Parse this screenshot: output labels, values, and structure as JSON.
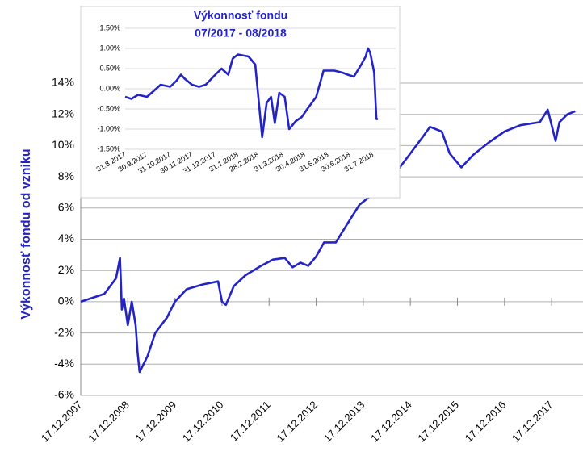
{
  "chart_data": [
    {
      "type": "line",
      "y_label": "Výkonnosť fondu od vzniku",
      "color": "#2323c8",
      "grid": true,
      "x": [
        "17.12.2007",
        "17.06.2008",
        "17.09.2008",
        "17.10.2008",
        "01.11.2008",
        "17.11.2008",
        "17.12.2008",
        "17.01.2009",
        "17.02.2009",
        "01.03.2009",
        "17.03.2009",
        "17.05.2009",
        "17.07.2009",
        "17.10.2009",
        "17.12.2009",
        "17.03.2010",
        "17.07.2010",
        "17.11.2010",
        "17.12.2010",
        "17.01.2011",
        "17.03.2011",
        "17.06.2011",
        "17.10.2011",
        "17.01.2012",
        "17.04.2012",
        "17.06.2012",
        "17.08.2012",
        "17.10.2012",
        "17.12.2012",
        "17.02.2013",
        "17.05.2013",
        "17.08.2013",
        "17.11.2013",
        "17.02.2014",
        "17.06.2014",
        "17.12.2014",
        "17.03.2015",
        "17.05.2015",
        "17.08.2015",
        "17.10.2015",
        "17.01.2016",
        "17.04.2016",
        "17.08.2016",
        "17.12.2016",
        "17.04.2017",
        "17.09.2017",
        "17.11.2017",
        "17.01.2018",
        "17.02.2018",
        "17.04.2018",
        "17.06.2018"
      ],
      "values": [
        0,
        0.5,
        1.5,
        2.8,
        -0.5,
        0.2,
        -1.5,
        0,
        -1.5,
        -3.2,
        -4.5,
        -3.5,
        -2,
        -1,
        0,
        0.8,
        1.1,
        1.3,
        0,
        -0.2,
        1,
        1.7,
        2.3,
        2.7,
        2.8,
        2.2,
        2.5,
        2.3,
        2.9,
        3.8,
        3.8,
        5,
        6.2,
        6.8,
        7.5,
        9.5,
        10.5,
        11.2,
        10.9,
        9.5,
        8.6,
        9.4,
        10.2,
        10.9,
        11.3,
        11.5,
        12.3,
        10.3,
        11.5,
        12,
        12.2
      ],
      "xticks": [
        "17.12.2007",
        "17.12.2008",
        "17.12.2009",
        "17.12.2010",
        "17.12.2011",
        "17.12.2012",
        "17.12.2013",
        "17.12.2014",
        "17.12.2015",
        "17.12.2016",
        "17.12.2017"
      ],
      "xlim": [
        "17.12.2007",
        "17.08.2018"
      ],
      "ylim": [
        -6,
        14
      ],
      "yticks": [
        {
          "value": -6,
          "label": "-6%"
        },
        {
          "value": -4,
          "label": "-4%"
        },
        {
          "value": -2,
          "label": "-2%"
        },
        {
          "value": 0,
          "label": "0%"
        },
        {
          "value": 2,
          "label": "2%"
        },
        {
          "value": 4,
          "label": "4%"
        },
        {
          "value": 6,
          "label": "6%"
        },
        {
          "value": 8,
          "label": "8%"
        },
        {
          "value": 10,
          "label": "10%"
        },
        {
          "value": 12,
          "label": "12%"
        },
        {
          "value": 14,
          "label": "14%"
        }
      ]
    },
    {
      "type": "line",
      "title": "Výkonnosť fondu",
      "subtitle": "07/2017 - 08/2018",
      "color": "#2323c8",
      "grid": true,
      "x": [
        "31.8.2017",
        "9.9.2017",
        "18.9.2017",
        "30.9.2017",
        "9.10.2017",
        "18.10.2017",
        "31.10.2017",
        "9.11.2017",
        "15.11.2017",
        "20.11.2017",
        "30.11.2017",
        "9.12.2017",
        "18.12.2017",
        "31.12.2017",
        "9.1.2018",
        "18.1.2018",
        "24.1.2018",
        "31.1.2018",
        "15.2.2018",
        "24.2.2018",
        "3.3.2018",
        "9.3.2018",
        "15.3.2018",
        "20.3.2018",
        "26.3.2018",
        "3.4.2018",
        "9.4.2018",
        "18.4.2018",
        "26.4.2018",
        "3.5.2018",
        "15.5.2018",
        "25.5.2018",
        "9.6.2018",
        "20.6.2018",
        "27.6.2018",
        "5.7.2018",
        "15.7.2018",
        "21.7.2018",
        "24.7.2018",
        "27.7.2018",
        "2.8.2018",
        "5.8.2018",
        "7.8.2018"
      ],
      "values": [
        -0.2,
        -0.25,
        -0.15,
        -0.2,
        -0.05,
        0.1,
        0.05,
        0.2,
        0.35,
        0.25,
        0.1,
        0.05,
        0.1,
        0.35,
        0.5,
        0.35,
        0.75,
        0.85,
        0.8,
        0.6,
        -1.2,
        -0.35,
        -0.2,
        -0.85,
        -0.1,
        -0.2,
        -1,
        -0.8,
        -0.7,
        -0.5,
        -0.2,
        0.45,
        0.45,
        0.4,
        0.35,
        0.3,
        0.6,
        0.8,
        1,
        0.9,
        0.4,
        -0.75,
        -0.75
      ],
      "xticks": [
        "31.8.2017",
        "30.9.2017",
        "31.10.2017",
        "30.11.2017",
        "31.12.2017",
        "31.1.2018",
        "28.2.2018",
        "31.3.2018",
        "30.4.2018",
        "31.5.2018",
        "30.6.2018",
        "31.7.2018"
      ],
      "xlim": [
        "31.8.2017",
        "31.8.2018"
      ],
      "ylim": [
        -1.5,
        1.5
      ],
      "yticks": [
        {
          "value": -1.5,
          "label": "-1.50%"
        },
        {
          "value": -1,
          "label": "-1.00%"
        },
        {
          "value": -0.5,
          "label": "-0.50%"
        },
        {
          "value": 0,
          "label": "0.00%"
        },
        {
          "value": 0.5,
          "label": "0.50%"
        },
        {
          "value": 1,
          "label": "1.00%"
        },
        {
          "value": 1.5,
          "label": "1.50%"
        }
      ]
    }
  ]
}
